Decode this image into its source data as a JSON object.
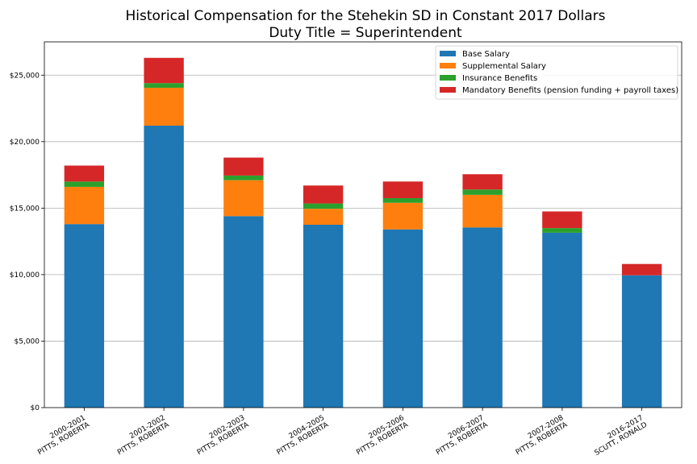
{
  "chart_data": {
    "type": "bar",
    "stacked": true,
    "title": "Historical Compensation for the Stehekin SD in Constant 2017 Dollars",
    "subtitle": "Duty Title = Superintendent",
    "xlabel": "",
    "ylabel": "",
    "ylim": [
      0,
      27500
    ],
    "yticks": [
      0,
      5000,
      10000,
      15000,
      20000,
      25000
    ],
    "ytick_labels": [
      "$0",
      "$5,000",
      "$10,000",
      "$15,000",
      "$20,000",
      "$25,000"
    ],
    "grid": "horizontal",
    "legend_position": "top-right",
    "categories": [
      [
        "2000-2001",
        "PITTS, ROBERTA"
      ],
      [
        "2001-2002",
        "PITTS, ROBERTA"
      ],
      [
        "2002-2003",
        "PITTS, ROBERTA"
      ],
      [
        "2004-2005",
        "PITTS, ROBERTA"
      ],
      [
        "2005-2006",
        "PITTS, ROBERTA"
      ],
      [
        "2006-2007",
        "PITTS, ROBERTA"
      ],
      [
        "2007-2008",
        "PITTS, ROBERTA"
      ],
      [
        "2016-2017",
        "SCUTT, RONALD"
      ]
    ],
    "series": [
      {
        "name": "Base Salary",
        "color": "#1f77b4",
        "values": [
          13800,
          21200,
          14400,
          13750,
          13400,
          13550,
          13150,
          9950
        ]
      },
      {
        "name": "Supplemental Salary",
        "color": "#ff7f0e",
        "values": [
          2800,
          2850,
          2700,
          1200,
          2000,
          2450,
          0,
          0
        ]
      },
      {
        "name": "Insurance Benefits",
        "color": "#2ca02c",
        "values": [
          400,
          350,
          350,
          400,
          350,
          400,
          350,
          0
        ]
      },
      {
        "name": "Mandatory Benefits (pension funding + payroll taxes)",
        "color": "#d62728",
        "values": [
          1200,
          1900,
          1350,
          1350,
          1250,
          1150,
          1250,
          850
        ]
      }
    ]
  }
}
